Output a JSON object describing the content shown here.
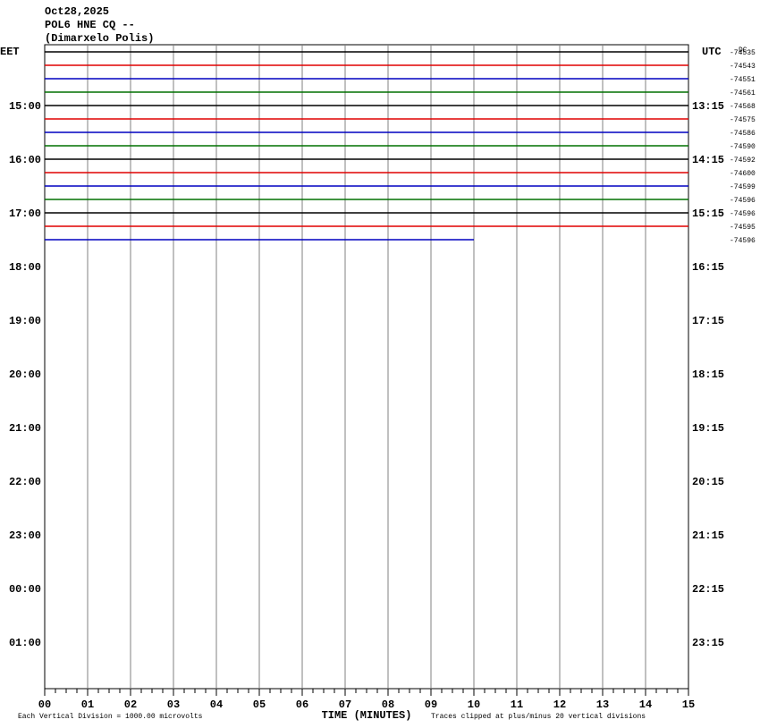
{
  "header": {
    "date": "Oct28,2025",
    "station": "POL6 HNE CQ --",
    "location": "(Dimarxelo Polis)"
  },
  "axes": {
    "left_label": "EET",
    "right_label": "UTC",
    "dc_label": "DC",
    "left_times": [
      "15:00",
      "16:00",
      "17:00",
      "18:00",
      "19:00",
      "20:00",
      "21:00",
      "22:00",
      "23:00",
      "00:00",
      "01:00"
    ],
    "right_times": [
      "13:15",
      "14:15",
      "15:15",
      "16:15",
      "17:15",
      "18:15",
      "19:15",
      "20:15",
      "21:15",
      "22:15",
      "23:15"
    ],
    "x_ticks": [
      "00",
      "01",
      "02",
      "03",
      "04",
      "05",
      "06",
      "07",
      "08",
      "09",
      "10",
      "11",
      "12",
      "13",
      "14",
      "15"
    ],
    "x_title": "TIME (MINUTES)"
  },
  "footer": {
    "scale": "Each Vertical Division = 1000.00 microvolts",
    "clip": "Traces clipped at plus/minus 20 vertical divisions"
  },
  "traces": [
    {
      "color": "#000000",
      "dc": -74535,
      "end": 15
    },
    {
      "color": "#e00000",
      "dc": -74543,
      "end": 15
    },
    {
      "color": "#0000c0",
      "dc": -74551,
      "end": 15
    },
    {
      "color": "#007000",
      "dc": -74561,
      "end": 15
    },
    {
      "color": "#000000",
      "dc": -74568,
      "end": 15
    },
    {
      "color": "#e00000",
      "dc": -74575,
      "end": 15
    },
    {
      "color": "#0000c0",
      "dc": -74586,
      "end": 15
    },
    {
      "color": "#007000",
      "dc": -74590,
      "end": 15
    },
    {
      "color": "#000000",
      "dc": -74592,
      "end": 15
    },
    {
      "color": "#e00000",
      "dc": -74600,
      "end": 15
    },
    {
      "color": "#0000c0",
      "dc": -74599,
      "end": 15
    },
    {
      "color": "#007000",
      "dc": -74596,
      "end": 15
    },
    {
      "color": "#000000",
      "dc": -74596,
      "end": 15
    },
    {
      "color": "#e00000",
      "dc": -74595,
      "end": 15
    },
    {
      "color": "#0000c0",
      "dc": -74596,
      "end": 10
    }
  ]
}
